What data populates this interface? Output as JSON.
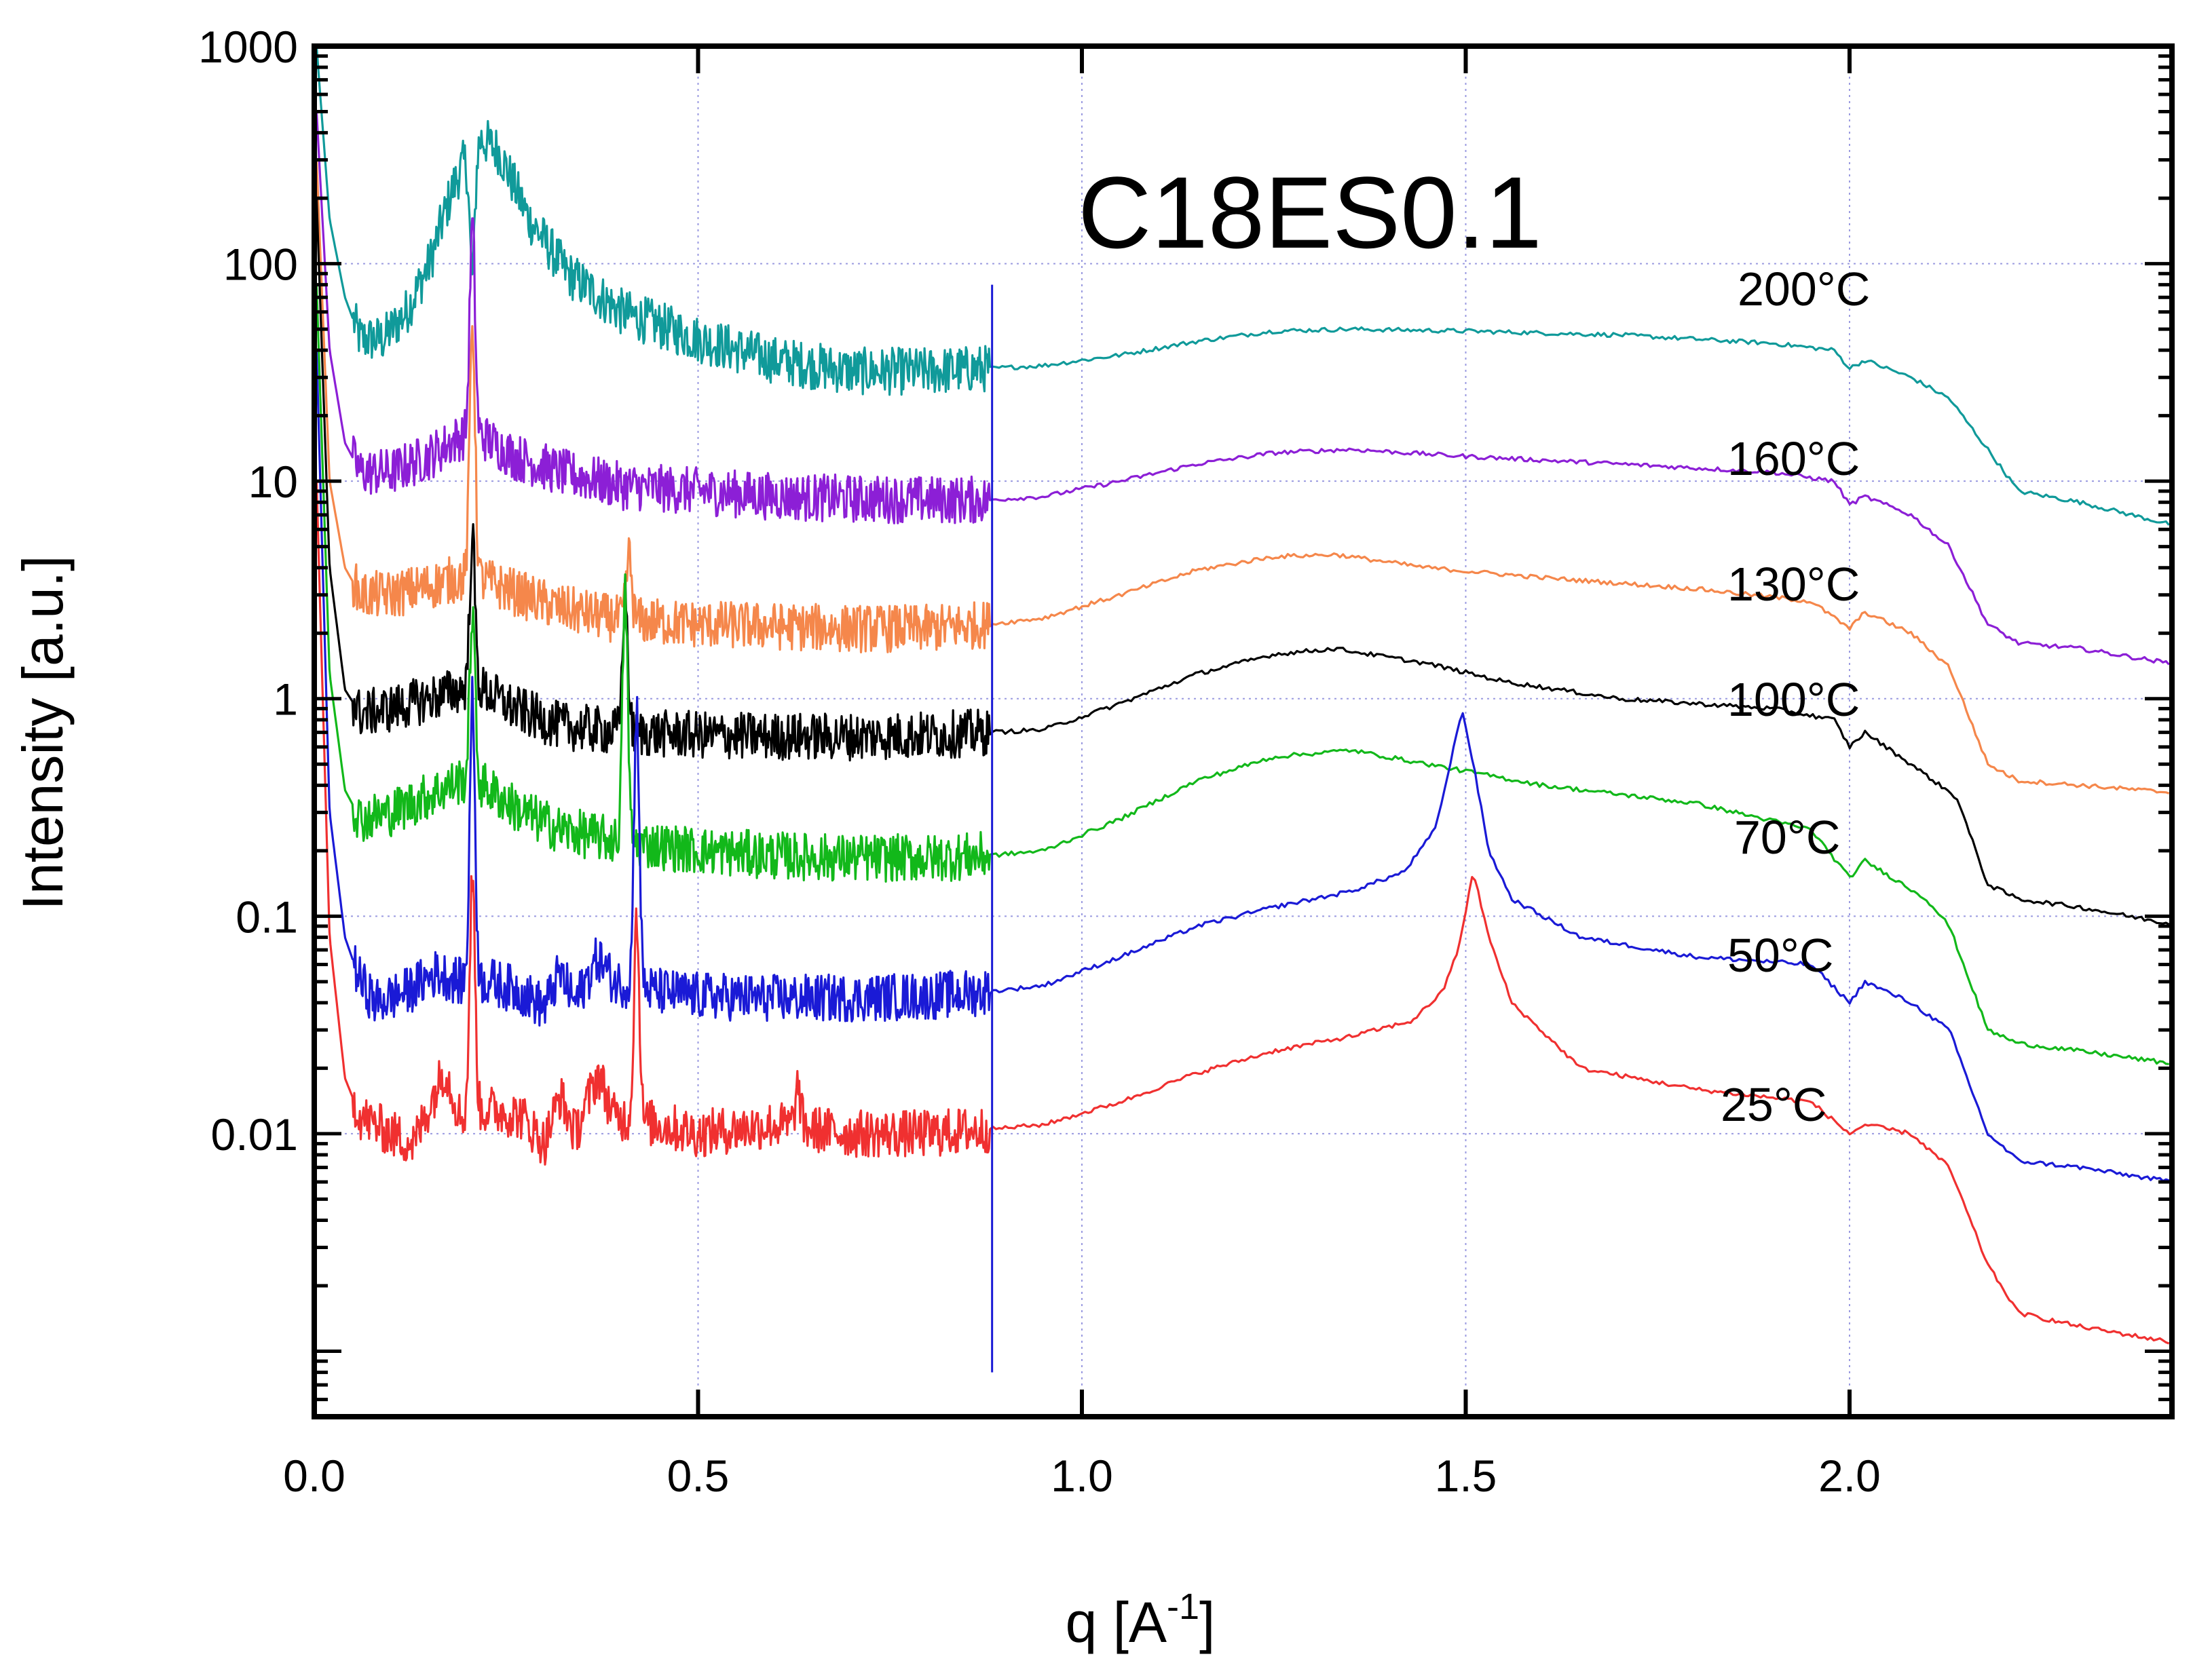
{
  "chart_data": {
    "type": "line",
    "title": "C18ES0.1",
    "xlabel": "q [A",
    "xlabel_sup": "-1",
    "xlabel_end": "]",
    "ylabel": "Intensity [a.u.]",
    "xlim": [
      0.0,
      2.42
    ],
    "ylim": [
      0.0005,
      1000
    ],
    "yscale": "log",
    "grid": true,
    "x_ticks": [
      0.0,
      0.5,
      1.0,
      1.5,
      2.0
    ],
    "x_tick_labels": [
      "0.0",
      "0.5",
      "1.0",
      "1.5",
      "2.0"
    ],
    "y_ticks": [
      0.01,
      0.1,
      1,
      10,
      100,
      1000
    ],
    "y_tick_labels": [
      "0.01",
      "0.1",
      "1",
      "10",
      "100",
      "1000"
    ],
    "series": [
      {
        "name": "200°C",
        "color": "#109a9a",
        "points": [
          [
            0.003,
            1000
          ],
          [
            0.02,
            160
          ],
          [
            0.04,
            70
          ],
          [
            0.06,
            45
          ],
          [
            0.09,
            45
          ],
          [
            0.12,
            60
          ],
          [
            0.15,
            100
          ],
          [
            0.18,
            220
          ],
          [
            0.21,
            390
          ],
          [
            0.24,
            330
          ],
          [
            0.28,
            160
          ],
          [
            0.33,
            90
          ],
          [
            0.4,
            60
          ],
          [
            0.5,
            45
          ],
          [
            0.6,
            36
          ],
          [
            0.7,
            32
          ],
          [
            0.8,
            32
          ],
          [
            0.88,
            33
          ],
          [
            0.95,
            34
          ],
          [
            1.05,
            38
          ],
          [
            1.15,
            44
          ],
          [
            1.25,
            49
          ],
          [
            1.35,
            50
          ],
          [
            1.5,
            49
          ],
          [
            1.7,
            47
          ],
          [
            1.9,
            43
          ],
          [
            1.98,
            40
          ],
          [
            2.0,
            33
          ],
          [
            2.02,
            36
          ],
          [
            2.08,
            30
          ],
          [
            2.13,
            24
          ],
          [
            2.18,
            14
          ],
          [
            2.22,
            9
          ],
          [
            2.3,
            8
          ],
          [
            2.42,
            6.3
          ]
        ],
        "sharp_peaks": [
          [
            0.206,
            90
          ]
        ]
      },
      {
        "name": "160°C",
        "color": "#8c1fd6",
        "points": [
          [
            0.003,
            500
          ],
          [
            0.02,
            40
          ],
          [
            0.04,
            15
          ],
          [
            0.06,
            11
          ],
          [
            0.1,
            11
          ],
          [
            0.15,
            13
          ],
          [
            0.19,
            16
          ],
          [
            0.22,
            16
          ],
          [
            0.26,
            13
          ],
          [
            0.32,
            11
          ],
          [
            0.4,
            9.5
          ],
          [
            0.5,
            9
          ],
          [
            0.6,
            8.5
          ],
          [
            0.7,
            8.3
          ],
          [
            0.8,
            8.2
          ],
          [
            0.88,
            8.2
          ],
          [
            0.95,
            8.5
          ],
          [
            1.05,
            10
          ],
          [
            1.15,
            12
          ],
          [
            1.25,
            13.5
          ],
          [
            1.35,
            14
          ],
          [
            1.5,
            13
          ],
          [
            1.7,
            12
          ],
          [
            1.9,
            11
          ],
          [
            1.98,
            10
          ],
          [
            2.0,
            7.8
          ],
          [
            2.02,
            8.5
          ],
          [
            2.08,
            7
          ],
          [
            2.13,
            5
          ],
          [
            2.18,
            2.2
          ],
          [
            2.22,
            1.8
          ],
          [
            2.3,
            1.7
          ],
          [
            2.42,
            1.45
          ]
        ],
        "sharp_peaks": [
          [
            0.206,
            150
          ]
        ]
      },
      {
        "name": "130°C",
        "color": "#f5874b",
        "points": [
          [
            0.003,
            300
          ],
          [
            0.02,
            10
          ],
          [
            0.04,
            4
          ],
          [
            0.06,
            3
          ],
          [
            0.1,
            3
          ],
          [
            0.15,
            3.3
          ],
          [
            0.19,
            3.6
          ],
          [
            0.22,
            3.5
          ],
          [
            0.27,
            3
          ],
          [
            0.32,
            2.6
          ],
          [
            0.4,
            2.3
          ],
          [
            0.5,
            2.2
          ],
          [
            0.6,
            2.15
          ],
          [
            0.7,
            2.1
          ],
          [
            0.8,
            2.1
          ],
          [
            0.88,
            2.2
          ],
          [
            0.95,
            2.35
          ],
          [
            1.05,
            3
          ],
          [
            1.15,
            3.9
          ],
          [
            1.25,
            4.5
          ],
          [
            1.33,
            4.6
          ],
          [
            1.45,
            4
          ],
          [
            1.6,
            3.6
          ],
          [
            1.8,
            3.2
          ],
          [
            1.95,
            2.8
          ],
          [
            2.0,
            2.1
          ],
          [
            2.02,
            2.5
          ],
          [
            2.08,
            2
          ],
          [
            2.13,
            1.4
          ],
          [
            2.18,
            0.5
          ],
          [
            2.22,
            0.42
          ],
          [
            2.3,
            0.4
          ],
          [
            2.42,
            0.37
          ]
        ],
        "sharp_peaks": [
          [
            0.206,
            55
          ],
          [
            0.41,
            4.5
          ]
        ]
      },
      {
        "name": "100°C",
        "color": "#000000",
        "points": [
          [
            0.003,
            200
          ],
          [
            0.02,
            4
          ],
          [
            0.04,
            1.1
          ],
          [
            0.06,
            0.85
          ],
          [
            0.1,
            0.9
          ],
          [
            0.15,
            1
          ],
          [
            0.19,
            1.1
          ],
          [
            0.22,
            1.1
          ],
          [
            0.26,
            0.9
          ],
          [
            0.32,
            0.75
          ],
          [
            0.4,
            0.7
          ],
          [
            0.5,
            0.68
          ],
          [
            0.6,
            0.67
          ],
          [
            0.7,
            0.67
          ],
          [
            0.8,
            0.68
          ],
          [
            0.88,
            0.7
          ],
          [
            0.95,
            0.72
          ],
          [
            1.05,
            0.95
          ],
          [
            1.15,
            1.3
          ],
          [
            1.25,
            1.6
          ],
          [
            1.33,
            1.7
          ],
          [
            1.45,
            1.45
          ],
          [
            1.55,
            1.2
          ],
          [
            1.7,
            1.0
          ],
          [
            1.9,
            0.9
          ],
          [
            1.98,
            0.8
          ],
          [
            2.0,
            0.6
          ],
          [
            2.02,
            0.7
          ],
          [
            2.08,
            0.5
          ],
          [
            2.14,
            0.35
          ],
          [
            2.18,
            0.14
          ],
          [
            2.22,
            0.12
          ],
          [
            2.3,
            0.11
          ],
          [
            2.42,
            0.092
          ]
        ],
        "sharp_peaks": [
          [
            0.206,
            5.5
          ],
          [
            0.405,
            3
          ]
        ]
      },
      {
        "name": "70°C",
        "color": "#12b81a",
        "points": [
          [
            0.003,
            80
          ],
          [
            0.02,
            1.3
          ],
          [
            0.04,
            0.38
          ],
          [
            0.06,
            0.28
          ],
          [
            0.1,
            0.3
          ],
          [
            0.15,
            0.36
          ],
          [
            0.19,
            0.42
          ],
          [
            0.22,
            0.4
          ],
          [
            0.27,
            0.3
          ],
          [
            0.32,
            0.25
          ],
          [
            0.4,
            0.22
          ],
          [
            0.5,
            0.2
          ],
          [
            0.6,
            0.19
          ],
          [
            0.7,
            0.185
          ],
          [
            0.8,
            0.185
          ],
          [
            0.88,
            0.19
          ],
          [
            0.95,
            0.2
          ],
          [
            1.05,
            0.28
          ],
          [
            1.15,
            0.42
          ],
          [
            1.25,
            0.54
          ],
          [
            1.35,
            0.58
          ],
          [
            1.45,
            0.5
          ],
          [
            1.6,
            0.4
          ],
          [
            1.8,
            0.33
          ],
          [
            1.95,
            0.25
          ],
          [
            2.0,
            0.15
          ],
          [
            2.02,
            0.18
          ],
          [
            2.1,
            0.12
          ],
          [
            2.13,
            0.09
          ],
          [
            2.18,
            0.03
          ],
          [
            2.22,
            0.026
          ],
          [
            2.3,
            0.024
          ],
          [
            2.42,
            0.021
          ]
        ],
        "sharp_peaks": [
          [
            0.206,
            2.5
          ],
          [
            0.405,
            3
          ]
        ]
      },
      {
        "name": "50°C",
        "color": "#1a1ad6",
        "points": [
          [
            0.003,
            40
          ],
          [
            0.02,
            0.3
          ],
          [
            0.04,
            0.08
          ],
          [
            0.06,
            0.05
          ],
          [
            0.08,
            0.04
          ],
          [
            0.12,
            0.045
          ],
          [
            0.16,
            0.055
          ],
          [
            0.19,
            0.05
          ],
          [
            0.23,
            0.05
          ],
          [
            0.27,
            0.045
          ],
          [
            0.3,
            0.038
          ],
          [
            0.32,
            0.055
          ],
          [
            0.34,
            0.04
          ],
          [
            0.37,
            0.065
          ],
          [
            0.39,
            0.05
          ],
          [
            0.45,
            0.045
          ],
          [
            0.5,
            0.043
          ],
          [
            0.6,
            0.042
          ],
          [
            0.7,
            0.042
          ],
          [
            0.8,
            0.043
          ],
          [
            0.88,
            0.045
          ],
          [
            0.95,
            0.048
          ],
          [
            1.05,
            0.065
          ],
          [
            1.15,
            0.09
          ],
          [
            1.25,
            0.11
          ],
          [
            1.35,
            0.13
          ],
          [
            1.42,
            0.16
          ],
          [
            1.46,
            0.25
          ],
          [
            1.48,
            0.5
          ],
          [
            1.495,
            0.9
          ],
          [
            1.51,
            0.5
          ],
          [
            1.53,
            0.2
          ],
          [
            1.56,
            0.12
          ],
          [
            1.65,
            0.08
          ],
          [
            1.8,
            0.065
          ],
          [
            1.95,
            0.06
          ],
          [
            2.0,
            0.04
          ],
          [
            2.02,
            0.05
          ],
          [
            2.08,
            0.04
          ],
          [
            2.13,
            0.03
          ],
          [
            2.18,
            0.01
          ],
          [
            2.22,
            0.0075
          ],
          [
            2.3,
            0.007
          ],
          [
            2.42,
            0.006
          ]
        ],
        "sharp_peaks": [
          [
            0.206,
            1.0
          ],
          [
            0.42,
            0.9
          ]
        ]
      },
      {
        "name": "25°C",
        "color": "#f03030",
        "points": [
          [
            0.003,
            10
          ],
          [
            0.02,
            0.08
          ],
          [
            0.04,
            0.018
          ],
          [
            0.06,
            0.012
          ],
          [
            0.1,
            0.01
          ],
          [
            0.13,
            0.009
          ],
          [
            0.17,
            0.02
          ],
          [
            0.19,
            0.012
          ],
          [
            0.23,
            0.013
          ],
          [
            0.27,
            0.012
          ],
          [
            0.3,
            0.009
          ],
          [
            0.32,
            0.015
          ],
          [
            0.34,
            0.01
          ],
          [
            0.37,
            0.019
          ],
          [
            0.39,
            0.012
          ],
          [
            0.45,
            0.011
          ],
          [
            0.5,
            0.01
          ],
          [
            0.6,
            0.011
          ],
          [
            0.7,
            0.01
          ],
          [
            0.8,
            0.01
          ],
          [
            0.88,
            0.0105
          ],
          [
            0.95,
            0.011
          ],
          [
            1.05,
            0.014
          ],
          [
            1.15,
            0.019
          ],
          [
            1.25,
            0.024
          ],
          [
            1.35,
            0.028
          ],
          [
            1.43,
            0.033
          ],
          [
            1.47,
            0.045
          ],
          [
            1.49,
            0.07
          ],
          [
            1.51,
            0.16
          ],
          [
            1.53,
            0.08
          ],
          [
            1.56,
            0.04
          ],
          [
            1.65,
            0.02
          ],
          [
            1.8,
            0.016
          ],
          [
            1.95,
            0.014
          ],
          [
            2.0,
            0.01
          ],
          [
            2.02,
            0.011
          ],
          [
            2.08,
            0.01
          ],
          [
            2.13,
            0.007
          ],
          [
            2.18,
            0.0025
          ],
          [
            2.22,
            0.0015
          ],
          [
            2.3,
            0.0013
          ],
          [
            2.42,
            0.0011
          ]
        ],
        "sharp_peaks": [
          [
            0.206,
            0.15
          ],
          [
            0.42,
            0.1
          ],
          [
            0.63,
            0.016
          ]
        ]
      }
    ]
  }
}
